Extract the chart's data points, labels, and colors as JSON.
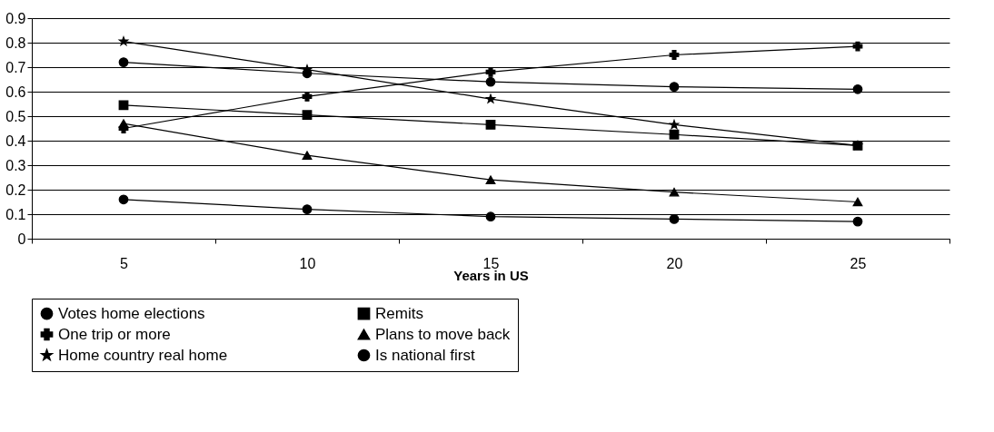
{
  "chart_data": {
    "type": "line",
    "xlabel": "Years in US",
    "categories": [
      "5",
      "10",
      "15",
      "20",
      "25"
    ],
    "ylim": [
      0,
      0.9
    ],
    "yticks": [
      0,
      0.1,
      0.2,
      0.3,
      0.4,
      0.5,
      0.6,
      0.7,
      0.8,
      0.9
    ],
    "grid": "y",
    "legend": "bottom",
    "line_style": "solid",
    "series": [
      {
        "name": "Votes home elections",
        "color": "#000000",
        "marker": "circle",
        "values": [
          0.16,
          0.12,
          0.09,
          0.08,
          0.07
        ]
      },
      {
        "name": "Remits",
        "color": "#000000",
        "marker": "square",
        "values": [
          0.545,
          0.505,
          0.465,
          0.425,
          0.38
        ]
      },
      {
        "name": "One trip or more",
        "color": "#000000",
        "marker": "cross",
        "values": [
          0.45,
          0.58,
          0.68,
          0.75,
          0.785
        ]
      },
      {
        "name": "Plans to move back",
        "color": "#000000",
        "marker": "triangle",
        "values": [
          0.47,
          0.34,
          0.24,
          0.19,
          0.15
        ]
      },
      {
        "name": "Home country real home",
        "color": "#000000",
        "marker": "star",
        "values": [
          0.805,
          0.69,
          0.57,
          0.465,
          0.38
        ]
      },
      {
        "name": "Is national first",
        "color": "#000000",
        "marker": "circle",
        "values": [
          0.72,
          0.675,
          0.64,
          0.62,
          0.61
        ]
      }
    ]
  }
}
